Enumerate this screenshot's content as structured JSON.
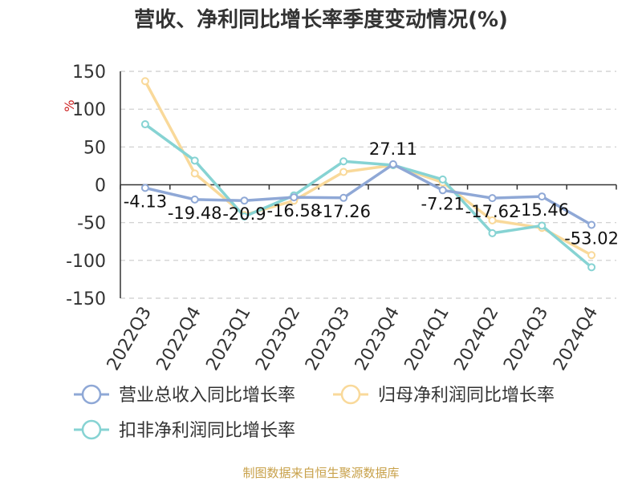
{
  "chart_data": {
    "type": "line",
    "title": "营收、净利同比增长率季度变动情况(%)",
    "ylabel": "%",
    "ylim": [
      -150,
      150
    ],
    "yticks": [
      150,
      100,
      50,
      0,
      -50,
      -100,
      -150
    ],
    "grid": true,
    "legend_position": "bottom",
    "categories": [
      "2022Q3",
      "2022Q4",
      "2023Q1",
      "2023Q2",
      "2023Q3",
      "2023Q4",
      "2024Q1",
      "2024Q2",
      "2024Q3",
      "2024Q4"
    ],
    "series": [
      {
        "name": "营业总收入同比增长率",
        "color": "#8fa8d6",
        "values": [
          -4.13,
          -19.48,
          -20.9,
          -16.58,
          -17.26,
          27.11,
          -7.21,
          -17.62,
          -15.46,
          -53.02
        ],
        "data_labels": [
          "-4.13",
          "-19.48",
          "-20.9",
          "-16.58",
          "-17.26",
          "27.11",
          "-7.21",
          "-17.62",
          "-15.46",
          "-53.02"
        ]
      },
      {
        "name": "归母净利润同比增长率",
        "color": "#f9d99a",
        "values": [
          137,
          15,
          -40,
          -21,
          17,
          26,
          3,
          -47,
          -57,
          -93
        ]
      },
      {
        "name": "扣非净利润同比增长率",
        "color": "#86d3d3",
        "values": [
          80,
          32,
          -42,
          -14,
          31,
          26,
          7,
          -64,
          -54,
          -109
        ]
      }
    ]
  },
  "footer": {
    "source": "制图数据来自恒生聚源数据库"
  }
}
